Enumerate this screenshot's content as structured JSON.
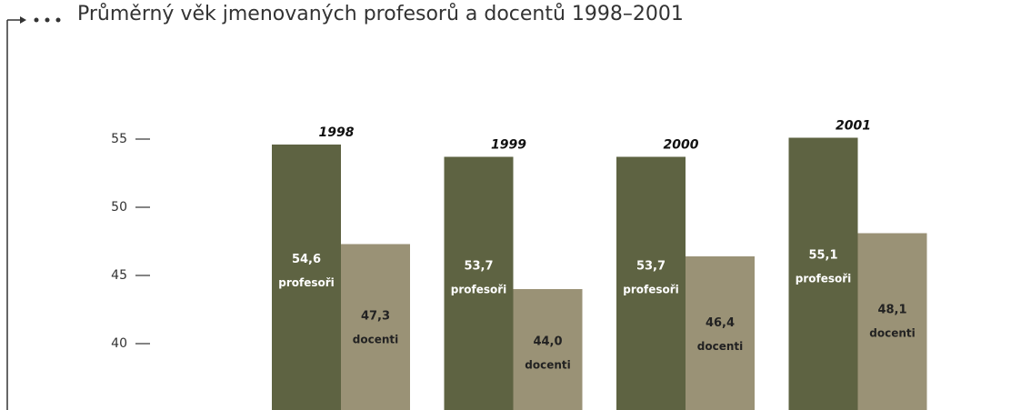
{
  "chart_data": {
    "type": "bar",
    "title": "Průměrný věk jmenovaných profesorů a docentů 1998–2001",
    "categories": [
      "1998",
      "1999",
      "2000",
      "2001"
    ],
    "series": [
      {
        "name": "profesoři",
        "color": "#5e6342",
        "values": [
          54.6,
          53.7,
          53.7,
          55.1
        ],
        "value_labels": [
          "54,6",
          "53,7",
          "53,7",
          "55,1"
        ]
      },
      {
        "name": "docenti",
        "color": "#9a9276",
        "values": [
          47.3,
          44.0,
          46.4,
          48.1
        ],
        "value_labels": [
          "47,3",
          "44,0",
          "46,4",
          "48,1"
        ]
      }
    ],
    "ylim": [
      35,
      57
    ],
    "yticks": [
      40,
      45,
      50,
      55
    ]
  }
}
